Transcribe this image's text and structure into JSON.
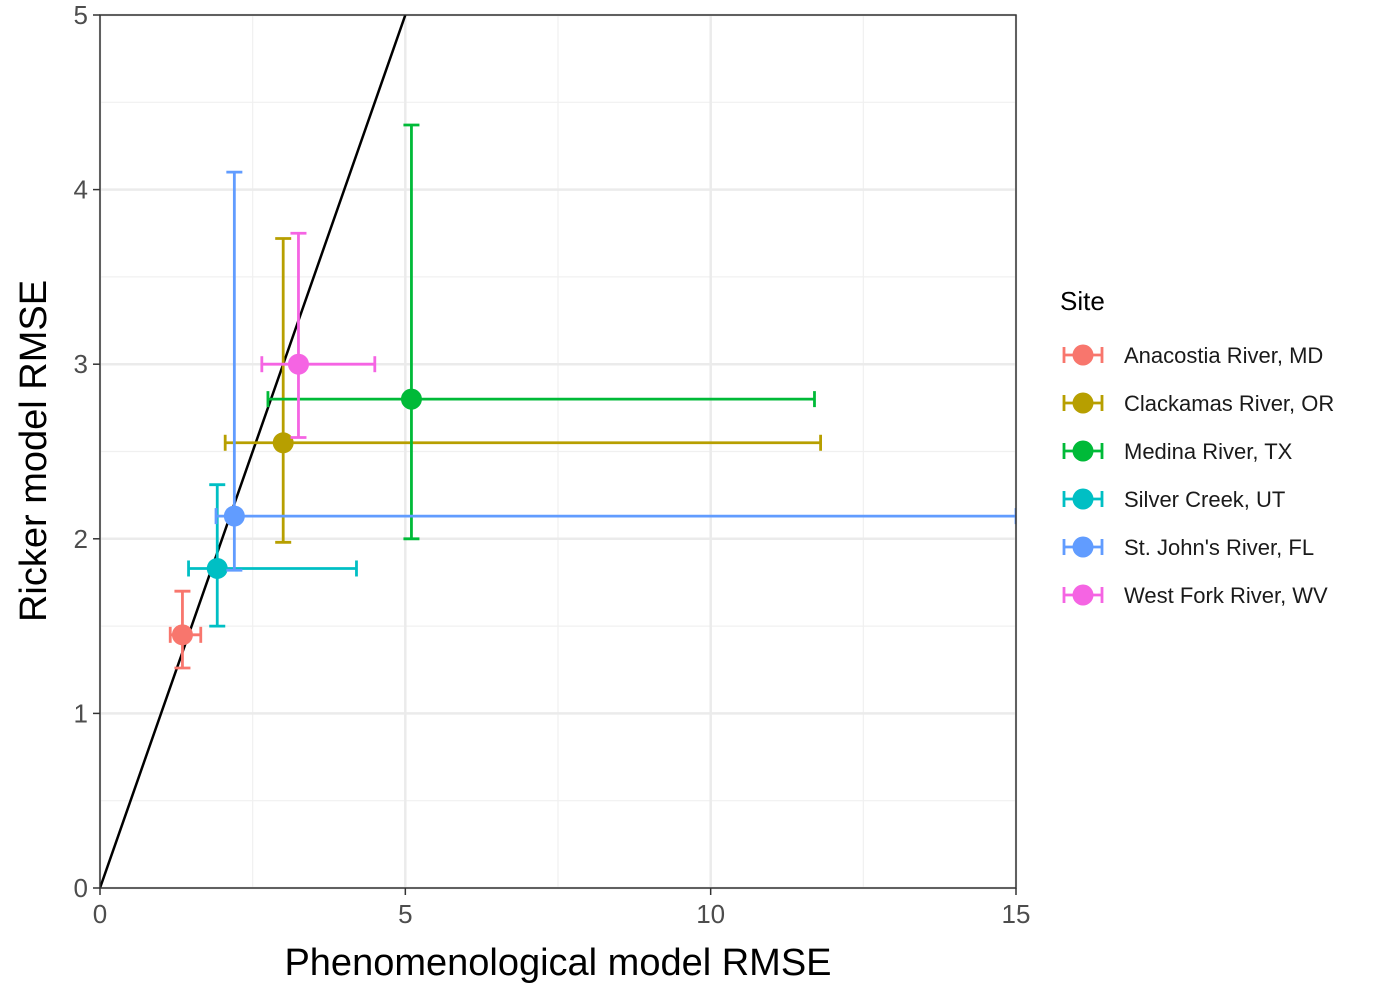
{
  "chart_data": {
    "type": "scatter",
    "xlabel": "Phenomenological model RMSE",
    "ylabel": "Ricker model RMSE",
    "xlim": [
      0,
      15
    ],
    "ylim": [
      0,
      5
    ],
    "xticks": [
      0,
      5,
      10,
      15
    ],
    "yticks": [
      0,
      1,
      2,
      3,
      4,
      5
    ],
    "grid": true,
    "legend_title": "Site",
    "legend_position": "right",
    "reference_line": {
      "slope": 1,
      "intercept": 0,
      "color": "#000000"
    },
    "series": [
      {
        "name": "Anacostia River, MD",
        "color": "#F8766D",
        "x": 1.35,
        "y": 1.45,
        "x_err": [
          1.15,
          1.65
        ],
        "y_err": [
          1.26,
          1.7
        ]
      },
      {
        "name": "Clackamas River, OR",
        "color": "#B79F00",
        "x": 3.0,
        "y": 2.55,
        "x_err": [
          2.05,
          11.8
        ],
        "y_err": [
          1.98,
          3.72
        ]
      },
      {
        "name": "Medina River, TX",
        "color": "#00BA38",
        "x": 5.1,
        "y": 2.8,
        "x_err": [
          2.75,
          11.7
        ],
        "y_err": [
          2.0,
          4.37
        ]
      },
      {
        "name": "Silver Creek, UT",
        "color": "#00BFC4",
        "x": 1.92,
        "y": 1.83,
        "x_err": [
          1.45,
          4.2
        ],
        "y_err": [
          1.5,
          2.31
        ]
      },
      {
        "name": "St. John's River, FL",
        "color": "#619CFF",
        "x": 2.2,
        "y": 2.13,
        "x_err": [
          1.9,
          15.0
        ],
        "y_err": [
          1.82,
          4.1
        ]
      },
      {
        "name": "West Fork River, WV",
        "color": "#F564E3",
        "x": 3.25,
        "y": 3.0,
        "x_err": [
          2.65,
          4.5
        ],
        "y_err": [
          2.58,
          3.75
        ]
      }
    ]
  }
}
